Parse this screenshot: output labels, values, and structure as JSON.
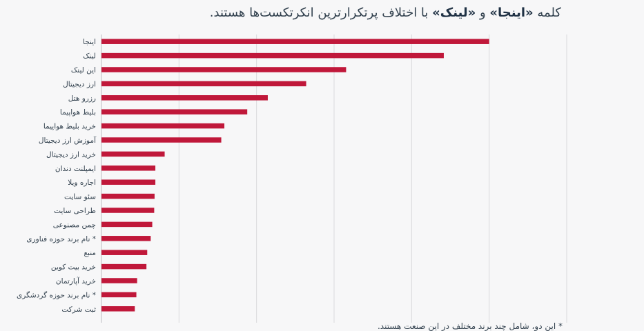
{
  "title": {
    "part1": "کلمه ",
    "word1": "«اینجا»",
    "part2": " و ",
    "word2": "«لینک»",
    "part3": " با اختلاف پرتکرارترین انکرتکست‌ها هستند."
  },
  "footnote": "* این دو، شامل چند برند مختلف در این صنعت هستند.",
  "colors": {
    "bar": "#c0183a",
    "grid": "#d9d9dc",
    "axis": "#bdbdc2",
    "text": "#33424f"
  },
  "chart_data": {
    "type": "bar",
    "orientation": "horizontal",
    "categories": [
      "اینجا",
      "لینک",
      "این لینک",
      "ارز دیجیتال",
      "رزرو هتل",
      "بلیط هواپیما",
      "خرید بلیط هواپیما",
      "آموزش ارز دیجیتال",
      "خرید ارز دیجیتال",
      "ایمپلنت دندان",
      "اجاره ویلا",
      "سئو سایت",
      "طراحی سایت",
      "چمن مصنوعی",
      "نام برند حوزه فناوری *",
      "منبع",
      "خرید بیت کوین",
      "خرید آپارتمان",
      "نام برند حوزه گردشگری *",
      "ثبت شرکت"
    ],
    "values": [
      1000,
      883,
      631,
      528,
      429,
      376,
      317,
      309,
      163,
      139,
      139,
      137,
      136,
      131,
      127,
      118,
      116,
      92,
      90,
      86
    ],
    "xlim": [
      0,
      1200
    ],
    "grid": true,
    "x_tick_labels_visible": false
  }
}
